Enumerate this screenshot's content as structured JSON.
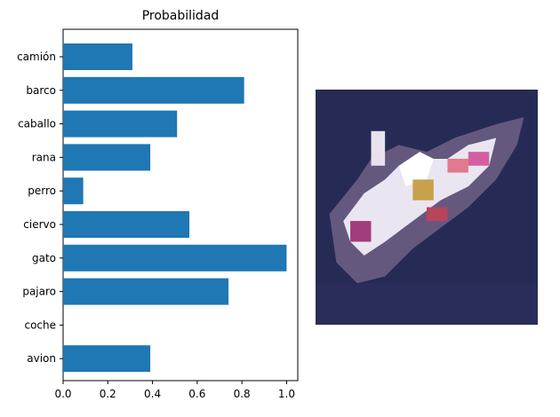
{
  "chart_data": {
    "type": "bar",
    "orientation": "horizontal",
    "title": "Probabilidad",
    "categories": [
      "camión",
      "barco",
      "caballo",
      "rana",
      "perro",
      "ciervo",
      "gato",
      "pajaro",
      "coche",
      "avion"
    ],
    "values": [
      0.31,
      0.81,
      0.51,
      0.39,
      0.09,
      0.565,
      1.0,
      0.74,
      0.0,
      0.39
    ],
    "xlim": [
      0.0,
      1.05
    ],
    "xticks": [
      "0.0",
      "0.2",
      "0.4",
      "0.6",
      "0.8",
      "1.0"
    ],
    "bar_color": "#1f77b4",
    "grid": false
  },
  "image_panel": {
    "icon": "ship-thumbnail",
    "background_color": "#262b55"
  }
}
